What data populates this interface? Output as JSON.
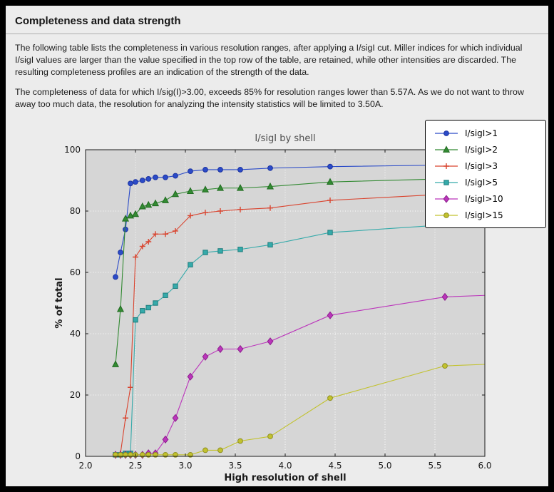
{
  "panel": {
    "title": "Completeness and data strength",
    "paragraph1": "The following table lists the completeness in various resolution ranges, after applying a I/sigI cut. Miller indices for which individual I/sigI values are larger than the value specified in the top row of the table, are retained, while other intensities are discarded. The resulting completeness profiles are an indication of the strength of the data.",
    "paragraph2": "The completeness of data for which I/sig(I)>3.00, exceeds  85% for resolution ranges lower than 5.57A. As we do not want to throw away too much data, the resolution for analyzing the intensity statistics will be limited to 3.50A."
  },
  "chart_data": {
    "type": "line",
    "title": "I/sigI by shell",
    "xlabel": "High resolution of shell",
    "ylabel": "% of total",
    "xlim": [
      2.0,
      6.0
    ],
    "ylim": [
      0,
      100
    ],
    "xticks": [
      2.0,
      2.5,
      3.0,
      3.5,
      4.0,
      4.5,
      5.0,
      5.5,
      6.0
    ],
    "xtick_labels": [
      "2.0",
      "2.5",
      "3.0",
      "3.5",
      "4.0",
      "4.5",
      "5.0",
      "5.5",
      "6.0"
    ],
    "yticks": [
      0,
      20,
      40,
      60,
      80,
      100
    ],
    "ytick_labels": [
      "0",
      "20",
      "40",
      "60",
      "80",
      "100"
    ],
    "grid": true,
    "legend_position": "top-right",
    "plot_bg": "#d6d6d6",
    "grid_color": "#ffffff",
    "x": [
      2.3,
      2.35,
      2.4,
      2.45,
      2.5,
      2.57,
      2.63,
      2.7,
      2.8,
      2.9,
      3.05,
      3.2,
      3.35,
      3.55,
      3.85,
      4.45,
      5.6
    ],
    "x_end": 6.0,
    "series": [
      {
        "name": "I/sigI>1",
        "color": "#2b4bc8",
        "edge": "#1c33a0",
        "marker": "circle",
        "values": [
          58.5,
          66.5,
          74,
          89,
          89.5,
          90,
          90.5,
          91,
          91,
          91.5,
          93,
          93.5,
          93.5,
          93.5,
          94,
          94.5,
          95
        ],
        "end_value": 95.5
      },
      {
        "name": "I/sigI>2",
        "color": "#338a33",
        "edge": "#1f6b1f",
        "marker": "triangle",
        "values": [
          30,
          48,
          77.5,
          78.5,
          79,
          81.5,
          82,
          82.5,
          83.5,
          85.5,
          86.5,
          87,
          87.5,
          87.5,
          88,
          89.5,
          90.5
        ],
        "end_value": 91
      },
      {
        "name": "I/sigI>3",
        "color": "#d9442f",
        "edge": "#a82e1e",
        "marker": "plus",
        "values": [
          0.5,
          1,
          12.5,
          22.5,
          65,
          68.5,
          70,
          72.5,
          72.5,
          73.5,
          78.5,
          79.5,
          80,
          80.5,
          81,
          83.5,
          85.5
        ],
        "end_value": 86
      },
      {
        "name": "I/sigI>5",
        "color": "#35aaaa",
        "edge": "#1f7d7d",
        "marker": "square",
        "values": [
          0.5,
          0.5,
          1,
          1,
          44.5,
          47.5,
          48.5,
          50,
          52.5,
          55.5,
          62.5,
          66.5,
          67,
          67.5,
          69,
          73,
          75.5
        ],
        "end_value": 76
      },
      {
        "name": "I/sigI>10",
        "color": "#bb35bb",
        "edge": "#8c1f8c",
        "marker": "diamond",
        "values": [
          0.5,
          0.5,
          0.5,
          0.5,
          0.5,
          0.5,
          1,
          1,
          5.5,
          12.5,
          26,
          32.5,
          35,
          35,
          37.5,
          46,
          52
        ],
        "end_value": 52.5
      },
      {
        "name": "I/sigI>15",
        "color": "#c2c22e",
        "edge": "#8f8f22",
        "marker": "circle",
        "values": [
          0.5,
          0.5,
          0.5,
          0.5,
          0.5,
          0.5,
          0.5,
          0.5,
          0.5,
          0.5,
          0.5,
          2,
          2,
          5,
          6.5,
          19,
          29.5
        ],
        "end_value": 30
      }
    ]
  }
}
